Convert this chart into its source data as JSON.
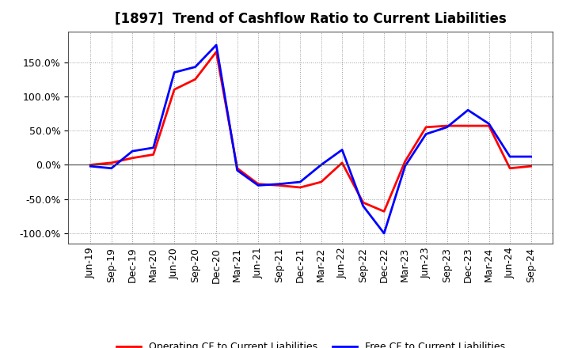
{
  "title": "[1897]  Trend of Cashflow Ratio to Current Liabilities",
  "x_labels": [
    "Jun-19",
    "Sep-19",
    "Dec-19",
    "Mar-20",
    "Jun-20",
    "Sep-20",
    "Dec-20",
    "Mar-21",
    "Jun-21",
    "Sep-21",
    "Dec-21",
    "Mar-22",
    "Jun-22",
    "Sep-22",
    "Dec-22",
    "Mar-23",
    "Jun-23",
    "Sep-23",
    "Dec-23",
    "Mar-24",
    "Jun-24",
    "Sep-24"
  ],
  "operating_cf": [
    0.0,
    3.0,
    10.0,
    15.0,
    110.0,
    125.0,
    165.0,
    -5.0,
    -28.0,
    -30.0,
    -33.0,
    -25.0,
    3.0,
    -55.0,
    -68.0,
    5.0,
    55.0,
    57.0,
    57.0,
    57.0,
    -5.0,
    -2.0
  ],
  "free_cf": [
    -2.0,
    -5.0,
    20.0,
    25.0,
    135.0,
    143.0,
    175.0,
    -8.0,
    -30.0,
    -28.0,
    -25.0,
    0.0,
    22.0,
    -60.0,
    -100.0,
    -2.0,
    45.0,
    55.0,
    80.0,
    60.0,
    12.0,
    12.0
  ],
  "operating_color": "#ff0000",
  "free_color": "#0000ff",
  "ylim": [
    -115,
    195
  ],
  "yticks": [
    -100.0,
    -50.0,
    0.0,
    50.0,
    100.0,
    150.0
  ],
  "legend_operating": "Operating CF to Current Liabilities",
  "legend_free": "Free CF to Current Liabilities",
  "background_color": "#ffffff",
  "plot_bg_color": "#ffffff",
  "grid_color": "#999999",
  "linewidth": 2.0,
  "title_fontsize": 12,
  "tick_fontsize": 9
}
